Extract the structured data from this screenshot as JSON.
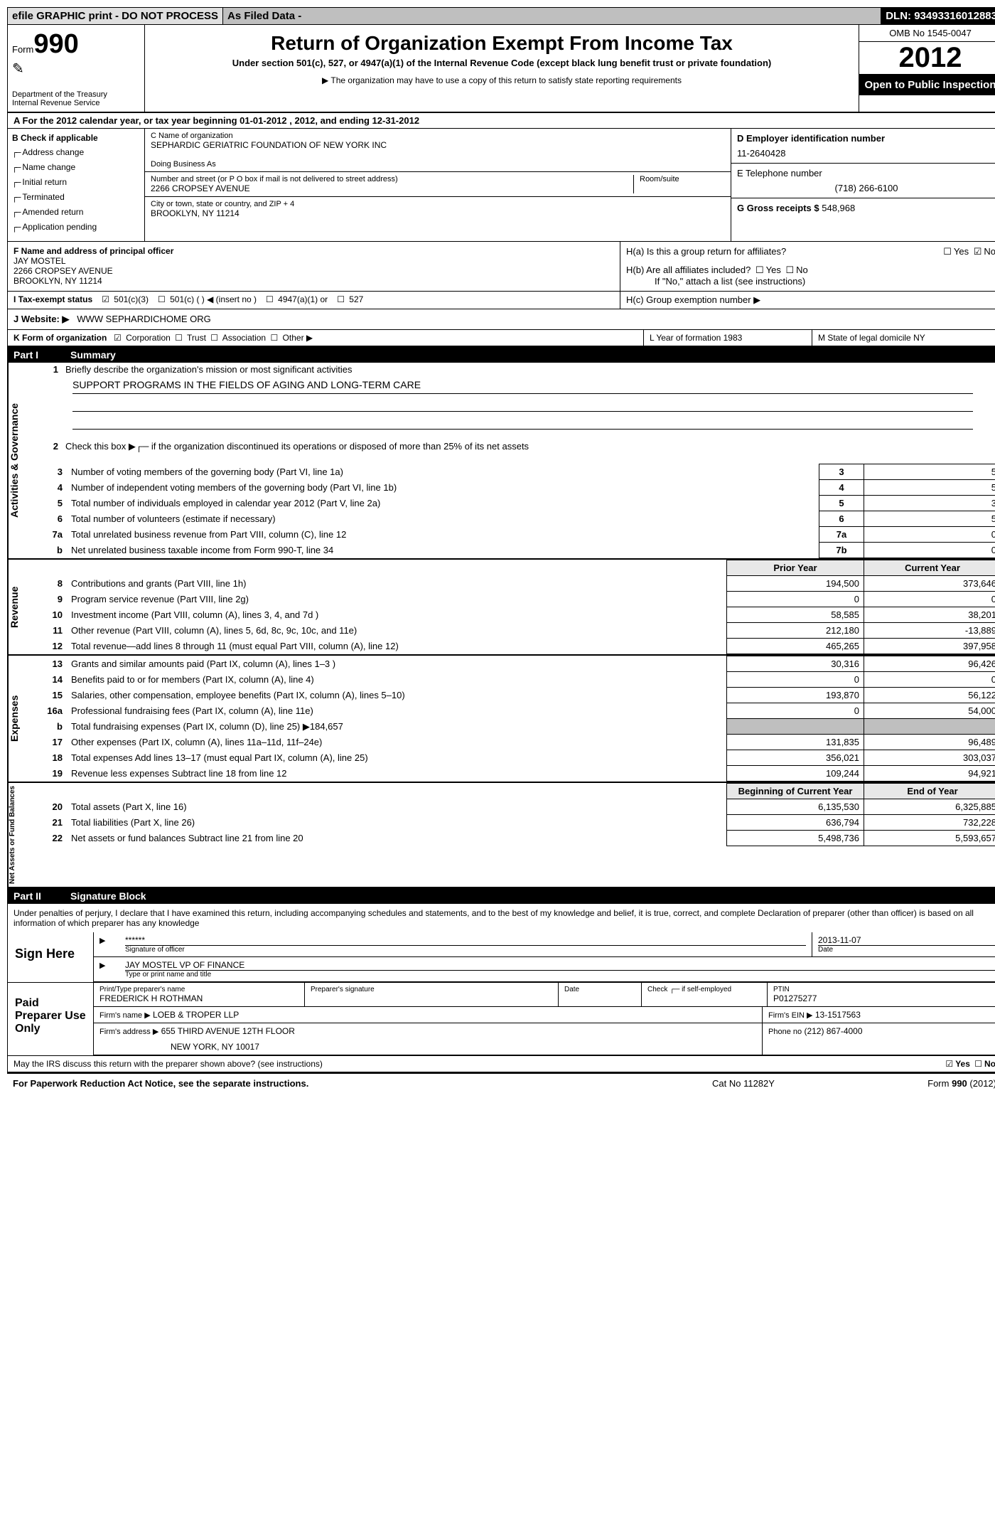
{
  "topbar": {
    "efile": "efile GRAPHIC print - DO NOT PROCESS",
    "asfiled": "As Filed Data -",
    "dln": "DLN: 93493316012883"
  },
  "header": {
    "form_label": "Form",
    "form_number": "990",
    "dept1": "Department of the Treasury",
    "dept2": "Internal Revenue Service",
    "title": "Return of Organization Exempt From Income Tax",
    "subtitle": "Under section 501(c), 527, or 4947(a)(1) of the Internal Revenue Code (except black lung benefit trust or private foundation)",
    "note": "▶ The organization may have to use a copy of this return to satisfy state reporting requirements",
    "omb": "OMB No 1545-0047",
    "year": "2012",
    "open": "Open to Public Inspection"
  },
  "row_a": "A  For the 2012 calendar year, or tax year beginning 01-01-2012    , 2012, and ending 12-31-2012",
  "section_b": {
    "label": "B  Check if applicable",
    "items": [
      "Address change",
      "Name change",
      "Initial return",
      "Terminated",
      "Amended return",
      "Application pending"
    ]
  },
  "section_c": {
    "name_label": "C Name of organization",
    "name": "SEPHARDIC GERIATRIC FOUNDATION OF NEW YORK INC",
    "dba_label": "Doing Business As",
    "dba": "",
    "street_label": "Number and street (or P O  box if mail is not delivered to street address)",
    "room_label": "Room/suite",
    "street": "2266 CROPSEY AVENUE",
    "city_label": "City or town, state or country, and ZIP + 4",
    "city": "BROOKLYN, NY  11214"
  },
  "section_d": {
    "ein_label": "D Employer identification number",
    "ein": "11-2640428",
    "tel_label": "E Telephone number",
    "tel": "(718) 266-6100",
    "gross_label": "G Gross receipts $",
    "gross": "548,968"
  },
  "section_f": {
    "label": "F  Name and address of principal officer",
    "name": "JAY MOSTEL",
    "addr1": "2266 CROPSEY AVENUE",
    "addr2": "BROOKLYN, NY  11214"
  },
  "section_h": {
    "ha": "H(a)  Is this a group return for affiliates?",
    "hb": "H(b)  Are all affiliates included?",
    "hb_note": "If \"No,\" attach a list  (see instructions)",
    "hc": "H(c)   Group exemption number ▶",
    "yes": "Yes",
    "no": "No"
  },
  "row_i": {
    "label": "I   Tax-exempt status",
    "opts": [
      "501(c)(3)",
      "501(c) (  ) ◀ (insert no )",
      "4947(a)(1) or",
      "527"
    ]
  },
  "row_j": {
    "label": "J   Website: ▶",
    "val": "WWW SEPHARDICHOME ORG"
  },
  "row_k": {
    "k1_label": "K Form of organization",
    "k1_opts": [
      "Corporation",
      "Trust",
      "Association",
      "Other ▶"
    ],
    "k2": "L Year of formation  1983",
    "k3": "M State of legal domicile  NY"
  },
  "part1": {
    "num": "Part I",
    "title": "Summary"
  },
  "summary": {
    "l1": "Briefly describe the organization's mission or most significant activities",
    "mission": "SUPPORT PROGRAMS IN THE FIELDS OF AGING AND LONG-TERM CARE",
    "l2": "Check this box ▶┌─ if the organization discontinued its operations or disposed of more than 25% of its net assets",
    "l3": "Number of voting members of the governing body (Part VI, line 1a)",
    "l4": "Number of independent voting members of the governing body (Part VI, line 1b)",
    "l5": "Total number of individuals employed in calendar year 2012 (Part V, line 2a)",
    "l6": "Total number of volunteers (estimate if necessary)",
    "l7a": "Total unrelated business revenue from Part VIII, column (C), line 12",
    "l7b": "Net unrelated business taxable income from Form 990-T, line 34",
    "v3": "5",
    "v4": "5",
    "v5": "3",
    "v6": "5",
    "v7a": "0",
    "v7b": "0"
  },
  "rev_hdr": {
    "prior": "Prior Year",
    "current": "Current Year"
  },
  "revenue": [
    {
      "n": "8",
      "d": "Contributions and grants (Part VIII, line 1h)",
      "p": "194,500",
      "c": "373,646"
    },
    {
      "n": "9",
      "d": "Program service revenue (Part VIII, line 2g)",
      "p": "0",
      "c": "0"
    },
    {
      "n": "10",
      "d": "Investment income (Part VIII, column (A), lines 3, 4, and 7d )",
      "p": "58,585",
      "c": "38,201"
    },
    {
      "n": "11",
      "d": "Other revenue (Part VIII, column (A), lines 5, 6d, 8c, 9c, 10c, and 11e)",
      "p": "212,180",
      "c": "-13,889"
    },
    {
      "n": "12",
      "d": "Total revenue—add lines 8 through 11 (must equal Part VIII, column (A), line 12)",
      "p": "465,265",
      "c": "397,958"
    }
  ],
  "expenses": [
    {
      "n": "13",
      "d": "Grants and similar amounts paid (Part IX, column (A), lines 1–3 )",
      "p": "30,316",
      "c": "96,426"
    },
    {
      "n": "14",
      "d": "Benefits paid to or for members (Part IX, column (A), line 4)",
      "p": "0",
      "c": "0"
    },
    {
      "n": "15",
      "d": "Salaries, other compensation, employee benefits (Part IX, column (A), lines 5–10)",
      "p": "193,870",
      "c": "56,122"
    },
    {
      "n": "16a",
      "d": "Professional fundraising fees (Part IX, column (A), line 11e)",
      "p": "0",
      "c": "54,000"
    },
    {
      "n": "b",
      "d": "Total fundraising expenses (Part IX, column (D), line 25) ▶184,657",
      "p": "",
      "c": "",
      "shaded": true
    },
    {
      "n": "17",
      "d": "Other expenses (Part IX, column (A), lines 11a–11d, 11f–24e)",
      "p": "131,835",
      "c": "96,489"
    },
    {
      "n": "18",
      "d": "Total expenses  Add lines 13–17 (must equal Part IX, column (A), line 25)",
      "p": "356,021",
      "c": "303,037"
    },
    {
      "n": "19",
      "d": "Revenue less expenses  Subtract line 18 from line 12",
      "p": "109,244",
      "c": "94,921"
    }
  ],
  "net_hdr": {
    "begin": "Beginning of Current Year",
    "end": "End of Year"
  },
  "netassets": [
    {
      "n": "20",
      "d": "Total assets (Part X, line 16)",
      "p": "6,135,530",
      "c": "6,325,885"
    },
    {
      "n": "21",
      "d": "Total liabilities (Part X, line 26)",
      "p": "636,794",
      "c": "732,228"
    },
    {
      "n": "22",
      "d": "Net assets or fund balances  Subtract line 21 from line 20",
      "p": "5,498,736",
      "c": "5,593,657"
    }
  ],
  "vert_labels": {
    "ag": "Activities & Governance",
    "rev": "Revenue",
    "exp": "Expenses",
    "net": "Net Assets or Fund Balances"
  },
  "part2": {
    "num": "Part II",
    "title": "Signature Block"
  },
  "sig": {
    "text": "Under penalties of perjury, I declare that I have examined this return, including accompanying schedules and statements, and to the best of my knowledge and belief, it is true, correct, and complete  Declaration of preparer (other than officer) is based on all information of which preparer has any knowledge",
    "sign_here": "Sign Here",
    "stars": "******",
    "sig_officer": "Signature of officer",
    "date": "Date",
    "sig_date": "2013-11-07",
    "officer": "JAY MOSTEL VP OF FINANCE",
    "officer_label": "Type or print name and title",
    "paid": "Paid Preparer Use Only",
    "prep_name_label": "Print/Type preparer's name",
    "prep_name": "FREDERICK H ROTHMAN",
    "prep_sig": "Preparer's signature",
    "check_self": "Check ┌─ if self-employed",
    "ptin_label": "PTIN",
    "ptin": "P01275277",
    "firm_name_label": "Firm's name    ▶",
    "firm_name": "LOEB & TROPER LLP",
    "firm_ein_label": "Firm's EIN ▶",
    "firm_ein": "13-1517563",
    "firm_addr_label": "Firm's address ▶",
    "firm_addr": "655 THIRD AVENUE 12TH FLOOR",
    "firm_city": "NEW YORK, NY  10017",
    "phone_label": "Phone no",
    "phone": "(212) 867-4000",
    "discuss": "May the IRS discuss this return with the preparer shown above? (see instructions)"
  },
  "footer": {
    "f1": "For Paperwork Reduction Act Notice, see the separate instructions.",
    "f2": "Cat No 11282Y",
    "f3": "Form 990 (2012)"
  }
}
